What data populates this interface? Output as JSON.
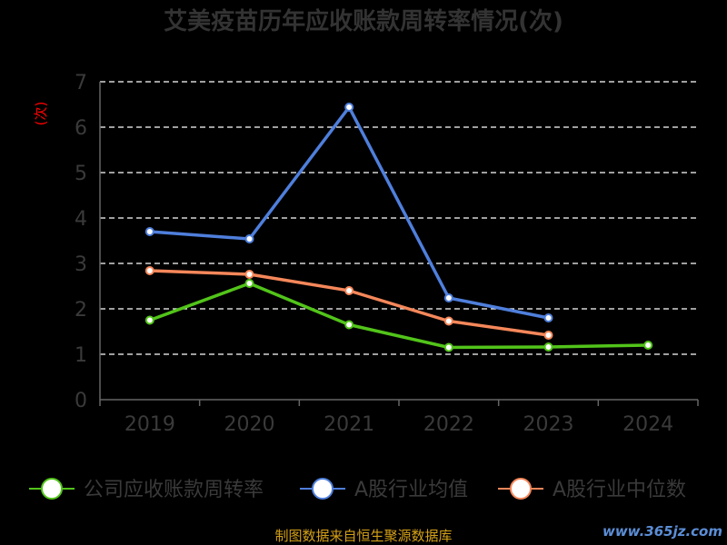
{
  "chart_data": {
    "type": "line",
    "title": "艾美疫苗历年应收账款周转率情况(次)",
    "ylabel": "(次)",
    "xlabel": "",
    "categories": [
      "2019",
      "2020",
      "2021",
      "2022",
      "2023",
      "2024"
    ],
    "ylim": [
      0,
      7
    ],
    "yticks": [
      0,
      1,
      2,
      3,
      4,
      5,
      6,
      7
    ],
    "grid": true,
    "legend_position": "bottom",
    "series": [
      {
        "name": "公司应收账款周转率",
        "color": "#52c41a",
        "values": [
          1.75,
          2.56,
          1.65,
          1.15,
          1.16,
          1.2
        ]
      },
      {
        "name": "A股行业均值",
        "color": "#4f7fdc",
        "values": [
          3.7,
          3.54,
          6.44,
          2.24,
          1.8,
          null
        ]
      },
      {
        "name": "A股行业中位数",
        "color": "#f5875a",
        "values": [
          2.84,
          2.76,
          2.4,
          1.73,
          1.42,
          null
        ]
      }
    ]
  },
  "footer": {
    "source": "制图数据来自恒生聚源数据库",
    "watermark": "www.365jz.com"
  }
}
